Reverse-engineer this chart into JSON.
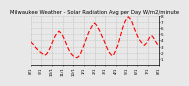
{
  "title": "Milwaukee Weather - Solar Radiation Avg per Day W/m2/minute",
  "x_labels": [
    "8/1",
    "",
    "",
    "9/1",
    "",
    "",
    "10/1",
    "",
    "",
    "11/1",
    "",
    "",
    "12/1",
    "",
    "",
    "1/1",
    "",
    "",
    "2/1",
    "",
    "",
    "3/1",
    "",
    "",
    "4/1",
    "",
    "",
    "5/1",
    "",
    "",
    "6/1",
    "",
    "",
    "7/1",
    "",
    "",
    "8/1"
  ],
  "x_tick_positions": [
    0,
    3,
    6,
    9,
    12,
    15,
    18,
    21,
    24,
    27,
    30,
    33,
    36
  ],
  "x_tick_labels": [
    "8/1",
    "9/1",
    "10/1",
    "11/1",
    "12/1",
    "1/1",
    "2/1",
    "3/1",
    "4/1",
    "5/1",
    "6/1",
    "7/1",
    "8/1"
  ],
  "x_values": [
    0,
    0.5,
    1,
    1.5,
    2,
    2.5,
    3,
    3.5,
    4,
    4.5,
    5,
    5.5,
    6,
    6.5,
    7,
    7.5,
    8,
    8.5,
    9,
    9.5,
    10,
    10.5,
    11,
    11.5,
    12,
    12.5,
    13,
    13.5,
    14,
    14.5,
    15,
    15.5,
    16,
    16.5,
    17,
    17.5,
    18,
    18.5,
    19,
    19.5,
    20,
    20.5,
    21,
    21.5,
    22,
    22.5,
    23,
    23.5,
    24,
    24.5,
    25,
    25.5,
    26,
    26.5,
    27,
    27.5,
    28,
    28.5,
    29,
    29.5,
    30,
    30.5,
    31,
    31.5,
    32,
    32.5,
    33,
    33.5,
    34,
    34.5,
    35,
    35.5,
    36
  ],
  "y_values": [
    3.8,
    3.5,
    3.2,
    2.8,
    2.5,
    2.2,
    2.0,
    1.8,
    1.6,
    1.8,
    2.2,
    2.8,
    3.5,
    4.2,
    4.8,
    5.2,
    5.5,
    5.2,
    4.8,
    4.2,
    3.5,
    2.8,
    2.2,
    1.8,
    1.5,
    1.3,
    1.2,
    1.4,
    1.8,
    2.5,
    3.2,
    4.0,
    4.8,
    5.5,
    6.0,
    6.5,
    6.8,
    6.5,
    6.0,
    5.5,
    4.8,
    4.2,
    3.5,
    2.8,
    2.2,
    1.8,
    1.5,
    1.8,
    2.5,
    3.2,
    4.2,
    5.2,
    6.2,
    7.0,
    7.5,
    7.8,
    7.5,
    7.0,
    6.2,
    5.5,
    4.8,
    4.2,
    3.8,
    3.5,
    3.2,
    3.5,
    4.0,
    4.5,
    4.8,
    4.5,
    4.0,
    3.5,
    3.2
  ],
  "line_color": "#ff0000",
  "line_width": 0.8,
  "grid_color": "#aaaaaa",
  "background_color": "#e8e8e8",
  "ylim": [
    0,
    8
  ],
  "yticks": [
    1,
    2,
    3,
    4,
    5,
    6,
    7,
    8
  ],
  "title_fontsize": 3.8,
  "tick_fontsize": 3.0,
  "vline_positions": [
    0,
    3,
    6,
    9,
    12,
    15,
    18,
    21,
    24,
    27,
    30,
    33,
    36
  ]
}
